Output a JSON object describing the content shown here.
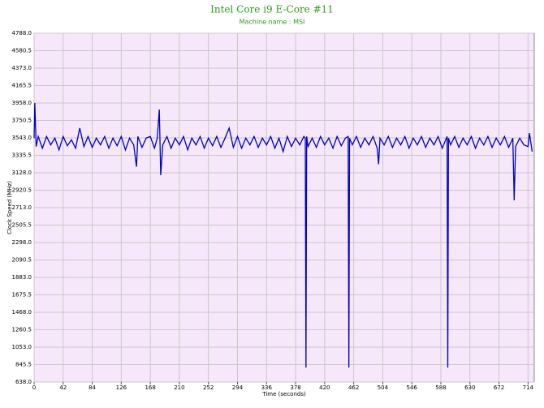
{
  "chart_data": {
    "type": "line",
    "title": "Intel Core i9 E-Core #11",
    "subtitle": "Machine name : MSI",
    "x_label": "Time (seconds)",
    "y_label": "Clock Speed (MHz)",
    "color": "#0000c0",
    "grid": true,
    "xlim": [
      0,
      723
    ],
    "ylim": [
      638,
      4788
    ],
    "xticks": [
      0,
      42,
      84,
      126,
      168,
      210,
      252,
      294,
      336,
      378,
      420,
      462,
      504,
      546,
      588,
      630,
      672,
      714
    ],
    "yticks": [
      {
        "value": 638,
        "label": "638.0"
      },
      {
        "value": 845.5,
        "label": "845.5"
      },
      {
        "value": 1053,
        "label": "1053.0"
      },
      {
        "value": 1260.5,
        "label": "1260.5"
      },
      {
        "value": 1468,
        "label": "1468.0"
      },
      {
        "value": 1675.5,
        "label": "1675.5"
      },
      {
        "value": 1883,
        "label": "1883.0"
      },
      {
        "value": 2090.5,
        "label": "2090.5"
      },
      {
        "value": 2298,
        "label": "2298.0"
      },
      {
        "value": 2505.5,
        "label": "2505.5"
      },
      {
        "value": 2713,
        "label": "2713.0"
      },
      {
        "value": 2920.5,
        "label": "2920.5"
      },
      {
        "value": 3128,
        "label": "3128.0"
      },
      {
        "value": 3335.5,
        "label": "3335.5"
      },
      {
        "value": 3543,
        "label": "3543.0"
      },
      {
        "value": 3750.5,
        "label": "3750.5"
      },
      {
        "value": 3958,
        "label": "3958.0"
      },
      {
        "value": 4165.5,
        "label": "4165.5"
      },
      {
        "value": 4373,
        "label": "4373.0"
      },
      {
        "value": 4580.5,
        "label": "4580.5"
      },
      {
        "value": 4788,
        "label": "4788.0"
      }
    ],
    "x": [
      0,
      1,
      3,
      6,
      12,
      18,
      24,
      30,
      36,
      42,
      48,
      54,
      60,
      66,
      72,
      78,
      84,
      90,
      96,
      102,
      108,
      114,
      120,
      126,
      132,
      138,
      144,
      148,
      150,
      156,
      162,
      168,
      174,
      178,
      181,
      183,
      186,
      192,
      198,
      204,
      210,
      216,
      222,
      228,
      234,
      240,
      246,
      252,
      258,
      264,
      270,
      276,
      282,
      288,
      294,
      300,
      306,
      312,
      318,
      324,
      330,
      336,
      342,
      348,
      354,
      360,
      366,
      372,
      378,
      384,
      390,
      392,
      393,
      394,
      396,
      402,
      408,
      414,
      420,
      426,
      432,
      438,
      444,
      450,
      454,
      455,
      456,
      460,
      466,
      472,
      478,
      484,
      490,
      496,
      498,
      500,
      506,
      512,
      518,
      524,
      530,
      536,
      542,
      548,
      554,
      560,
      566,
      572,
      578,
      584,
      590,
      596,
      597,
      598,
      599,
      602,
      608,
      614,
      620,
      626,
      632,
      638,
      644,
      650,
      656,
      662,
      668,
      674,
      680,
      686,
      692,
      694,
      696,
      702,
      708,
      714,
      716,
      720
    ],
    "values": [
      3540,
      3958,
      3440,
      3560,
      3420,
      3560,
      3460,
      3540,
      3400,
      3560,
      3450,
      3520,
      3420,
      3660,
      3440,
      3560,
      3430,
      3540,
      3460,
      3560,
      3420,
      3540,
      3450,
      3560,
      3400,
      3540,
      3460,
      3200,
      3560,
      3430,
      3540,
      3560,
      3420,
      3540,
      3880,
      3100,
      3460,
      3560,
      3420,
      3540,
      3460,
      3560,
      3400,
      3540,
      3460,
      3560,
      3420,
      3540,
      3450,
      3560,
      3430,
      3540,
      3660,
      3430,
      3560,
      3420,
      3540,
      3460,
      3560,
      3430,
      3540,
      3460,
      3560,
      3420,
      3540,
      3380,
      3560,
      3440,
      3540,
      3460,
      3560,
      3540,
      810,
      3560,
      3440,
      3540,
      3430,
      3560,
      3460,
      3540,
      3420,
      3560,
      3450,
      3540,
      3560,
      810,
      3540,
      3460,
      3560,
      3430,
      3540,
      3460,
      3560,
      3420,
      3230,
      3540,
      3460,
      3560,
      3430,
      3540,
      3460,
      3560,
      3420,
      3540,
      3460,
      3560,
      3430,
      3540,
      3460,
      3560,
      3420,
      3540,
      3560,
      810,
      3540,
      3460,
      3560,
      3430,
      3540,
      3460,
      3560,
      3420,
      3540,
      3460,
      3560,
      3430,
      3540,
      3460,
      3560,
      3430,
      3540,
      2800,
      3440,
      3540,
      3460,
      3440,
      3600,
      3380
    ]
  }
}
